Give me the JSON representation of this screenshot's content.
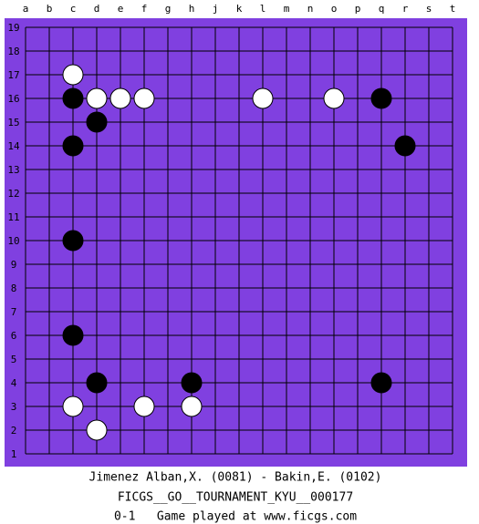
{
  "board": {
    "columns": [
      "a",
      "b",
      "c",
      "d",
      "e",
      "f",
      "g",
      "h",
      "j",
      "k",
      "l",
      "m",
      "n",
      "o",
      "p",
      "q",
      "r",
      "s",
      "t"
    ],
    "rows": [
      19,
      18,
      17,
      16,
      15,
      14,
      13,
      12,
      11,
      10,
      9,
      8,
      7,
      6,
      5,
      4,
      3,
      2,
      1
    ],
    "stones": [
      {
        "color": "white",
        "col": "c",
        "row": 17
      },
      {
        "color": "black",
        "col": "c",
        "row": 16
      },
      {
        "color": "white",
        "col": "d",
        "row": 16
      },
      {
        "color": "white",
        "col": "e",
        "row": 16
      },
      {
        "color": "white",
        "col": "f",
        "row": 16
      },
      {
        "color": "white",
        "col": "l",
        "row": 16
      },
      {
        "color": "white",
        "col": "o",
        "row": 16
      },
      {
        "color": "black",
        "col": "q",
        "row": 16
      },
      {
        "color": "black",
        "col": "d",
        "row": 15
      },
      {
        "color": "black",
        "col": "c",
        "row": 14
      },
      {
        "color": "black",
        "col": "r",
        "row": 14
      },
      {
        "color": "black",
        "col": "c",
        "row": 10
      },
      {
        "color": "black",
        "col": "c",
        "row": 6
      },
      {
        "color": "black",
        "col": "d",
        "row": 4
      },
      {
        "color": "black",
        "col": "h",
        "row": 4
      },
      {
        "color": "black",
        "col": "q",
        "row": 4
      },
      {
        "color": "white",
        "col": "c",
        "row": 3
      },
      {
        "color": "white",
        "col": "f",
        "row": 3
      },
      {
        "color": "white",
        "col": "h",
        "row": 3
      },
      {
        "color": "white",
        "col": "d",
        "row": 2
      }
    ]
  },
  "footer": {
    "players": "Jimenez Alban,X. (0081) - Bakin,E. (0102)",
    "event": "FICGS__GO__TOURNAMENT_KYU__000177",
    "result_line": "0-1   Game played at www.ficgs.com"
  }
}
